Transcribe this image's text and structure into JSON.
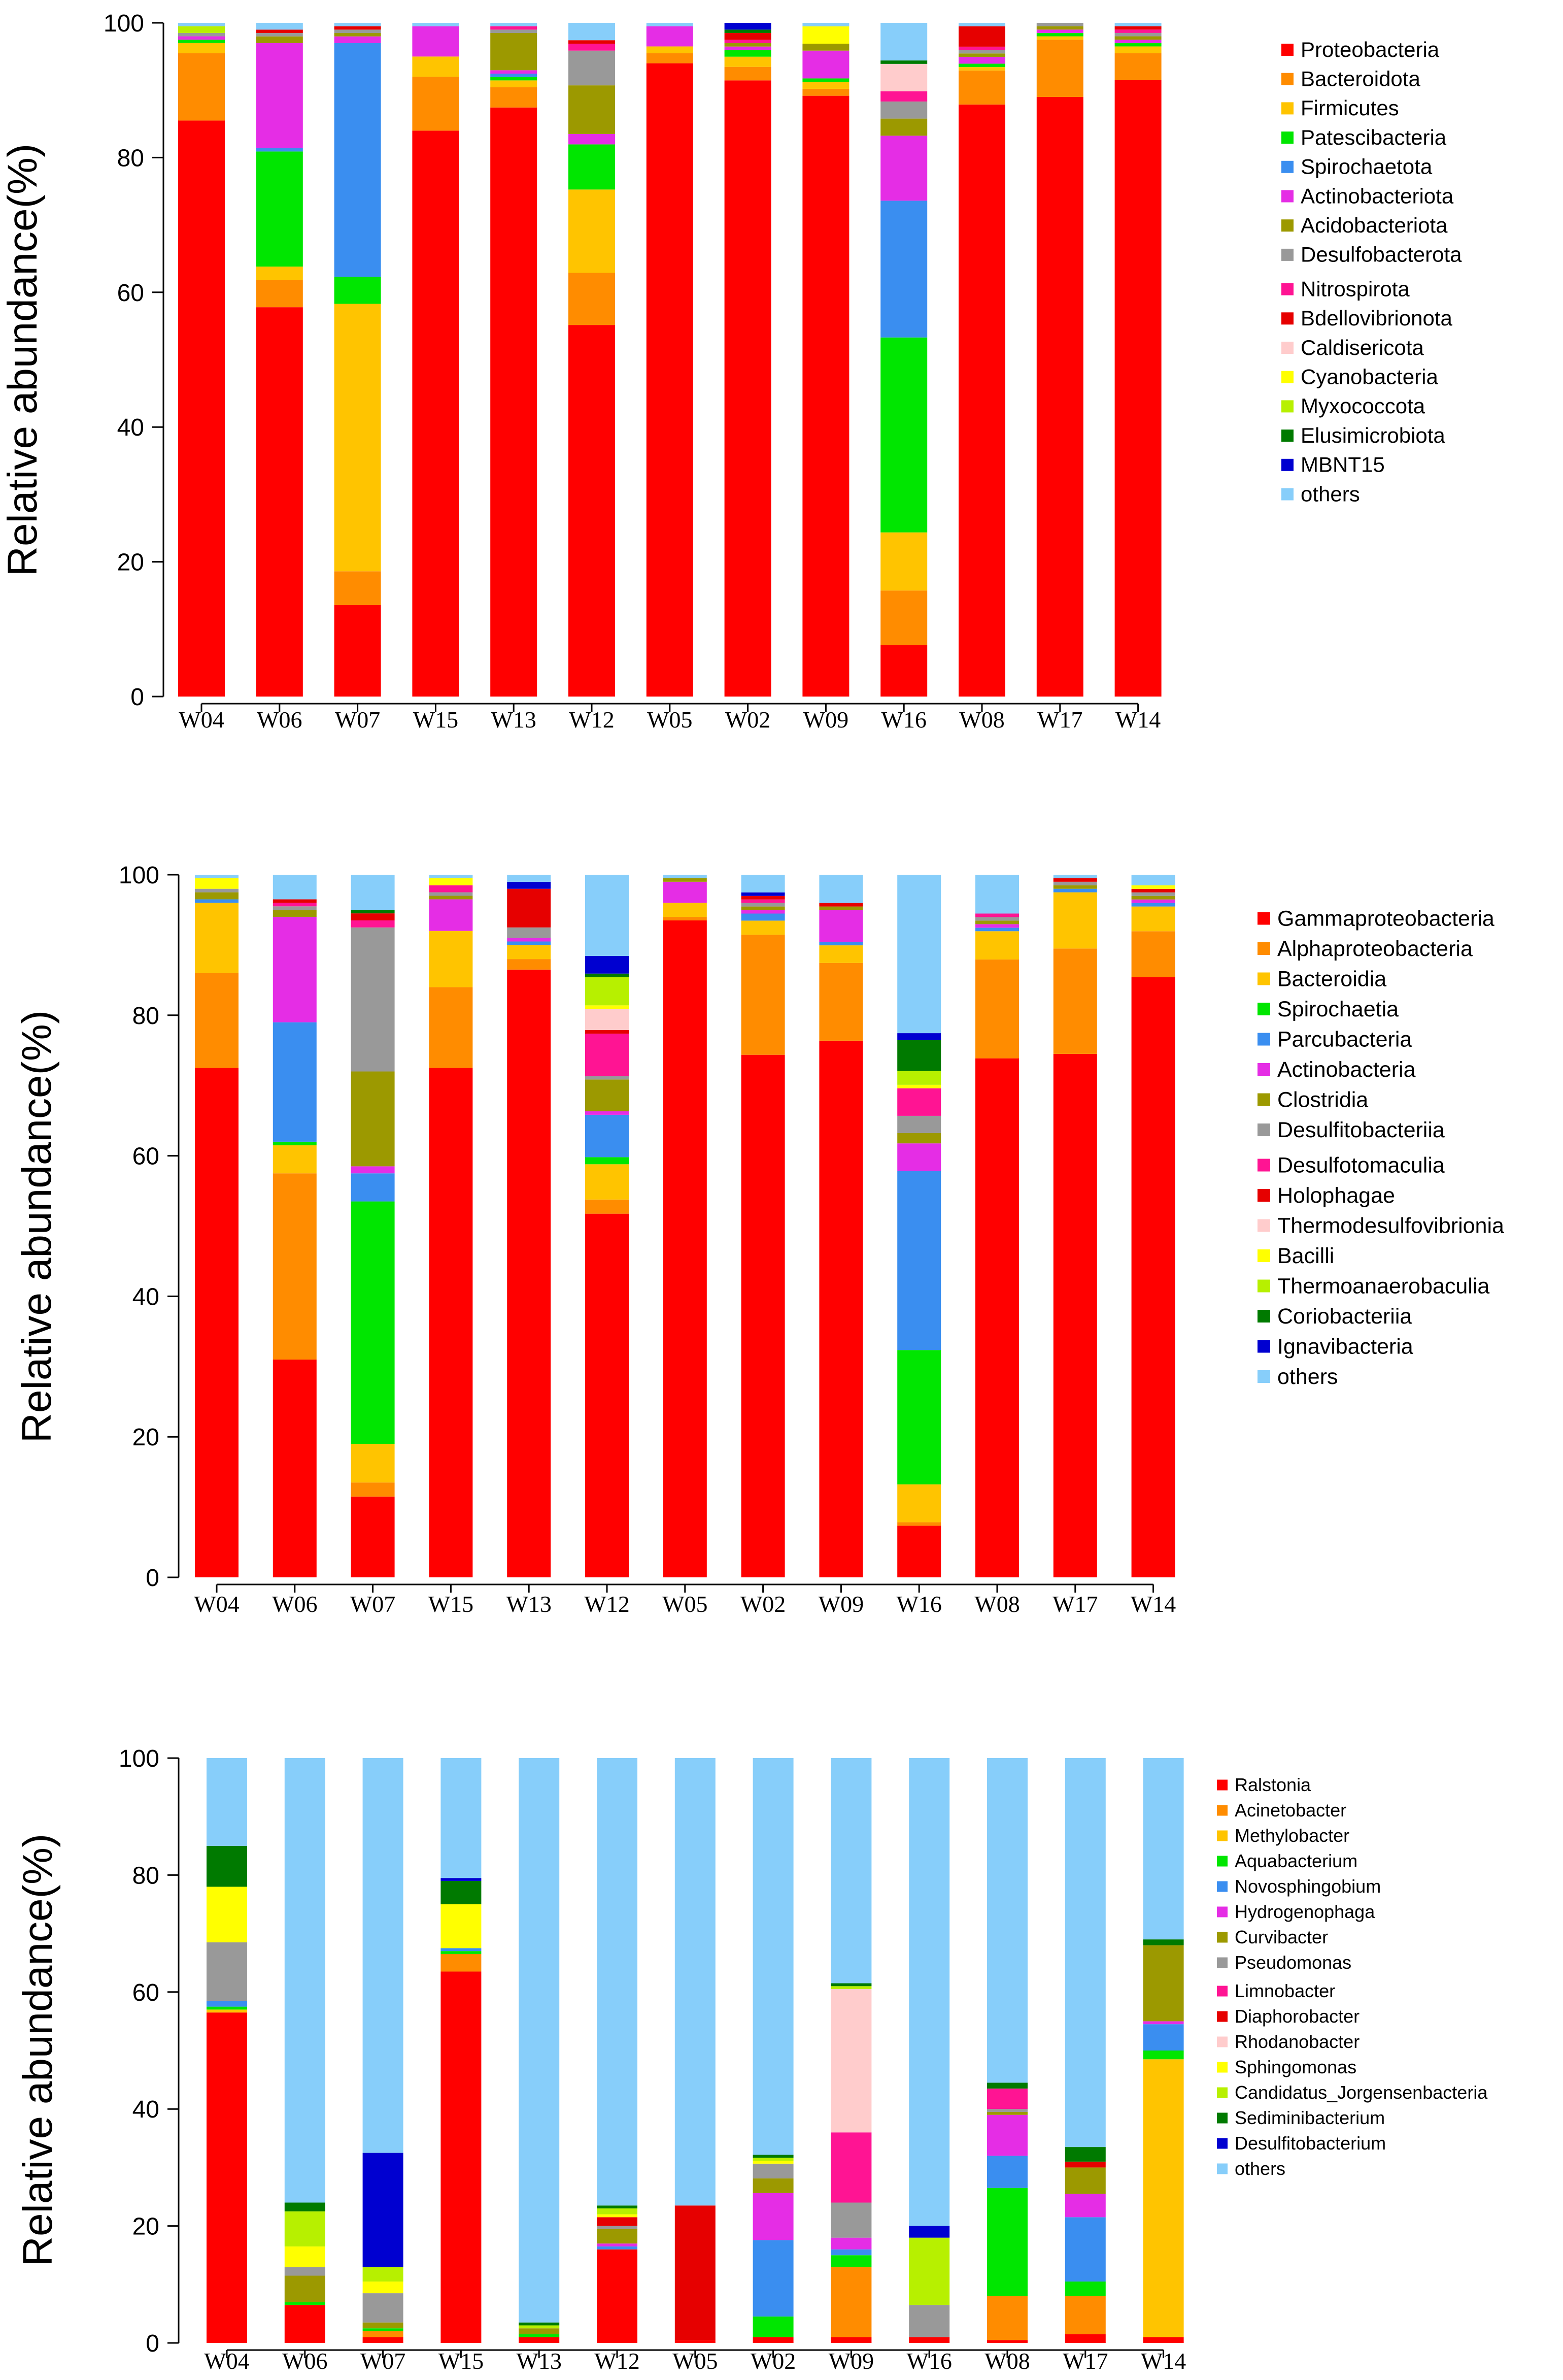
{
  "chart_data": [
    {
      "type": "bar",
      "stacked": true,
      "title": "",
      "xlabel": "",
      "ylabel": "Relative abundance(%)",
      "ylim": [
        0,
        100
      ],
      "yticks": [
        "0",
        "20",
        "40",
        "60",
        "80",
        "100"
      ],
      "categories": [
        "W04",
        "W06",
        "W07",
        "W15",
        "W13",
        "W12",
        "W05",
        "W02",
        "W09",
        "W16",
        "W08",
        "W17",
        "W14"
      ],
      "series": [
        {
          "name": "Proteobacteria",
          "color": "#ff0000",
          "values": [
            85.5,
            57.5,
            13.5,
            84,
            87,
            53.5,
            94,
            91,
            86.5,
            7.5,
            87,
            89,
            91.5
          ]
        },
        {
          "name": "Bacteroidota",
          "color": "#ff8c00",
          "values": [
            10,
            4,
            5,
            8,
            3,
            7.5,
            1.5,
            2,
            1,
            8,
            5,
            8.5,
            4
          ]
        },
        {
          "name": "Firmicutes",
          "color": "#ffc400",
          "values": [
            1.5,
            2,
            39.5,
            3,
            1,
            12,
            1,
            1.5,
            1,
            8.5,
            0.5,
            0.5,
            1
          ]
        },
        {
          "name": "Patescibacteria",
          "color": "#00e600",
          "values": [
            0.5,
            17,
            4,
            0,
            0.5,
            6.5,
            0,
            1,
            0.5,
            28.5,
            0.5,
            0.5,
            0.5
          ]
        },
        {
          "name": "Spirochaetota",
          "color": "#3a8ef0",
          "values": [
            0,
            0.5,
            34.5,
            0,
            0.5,
            0,
            0,
            0,
            0,
            20,
            0,
            0,
            0
          ]
        },
        {
          "name": "Actinobacteriota",
          "color": "#e52de5",
          "values": [
            0.5,
            15.5,
            1,
            4.5,
            0.5,
            1.5,
            3,
            0.5,
            4,
            9.5,
            1,
            0.5,
            0.5
          ]
        },
        {
          "name": "Acidobacteriota",
          "color": "#9c9900",
          "values": [
            0,
            1,
            0.5,
            0,
            5.5,
            7,
            0,
            0.5,
            1,
            2.5,
            0.5,
            0.5,
            0.5
          ]
        },
        {
          "name": "Desulfobacterota",
          "color": "#999999",
          "values": [
            0.5,
            0.5,
            0.5,
            0,
            0.5,
            5,
            0,
            0,
            0,
            2.5,
            0.5,
            0.5,
            0.5
          ]
        },
        {
          "name": "Nitrospirota",
          "color": "#ff1493",
          "values": [
            0,
            0,
            0,
            0,
            0.5,
            1,
            0,
            0.5,
            0,
            1.5,
            0.5,
            0,
            0.5
          ]
        },
        {
          "name": "Bdellovibrionota",
          "color": "#e60000",
          "values": [
            0,
            0.5,
            0.5,
            0,
            0,
            0.5,
            0,
            1,
            0,
            0,
            3,
            0,
            0.5
          ]
        },
        {
          "name": "Caldisericota",
          "color": "#ffcccc",
          "values": [
            0,
            0,
            0,
            0,
            0,
            0,
            0,
            0,
            0,
            4,
            0,
            0,
            0
          ]
        },
        {
          "name": "Cyanobacteria",
          "color": "#ffff00",
          "values": [
            0,
            0,
            0,
            0,
            0,
            0,
            0,
            0,
            2.5,
            0,
            0,
            0,
            0
          ]
        },
        {
          "name": "Myxococcota",
          "color": "#b7f000",
          "values": [
            1,
            0,
            0,
            0,
            0,
            0,
            0,
            0,
            0,
            0,
            0,
            0,
            0
          ]
        },
        {
          "name": "Elusimicrobiota",
          "color": "#007a00",
          "values": [
            0,
            0,
            0,
            0,
            0,
            0,
            0,
            0.5,
            0,
            0.5,
            0,
            0,
            0
          ]
        },
        {
          "name": "MBNT15",
          "color": "#0000d0",
          "values": [
            0,
            0,
            0,
            0,
            0,
            0,
            0,
            1,
            0,
            0,
            0,
            0,
            0
          ]
        },
        {
          "name": "others",
          "color": "#87cefa",
          "values": [
            0.5,
            1,
            0.5,
            0.5,
            0.5,
            2.5,
            0.5,
            0,
            0.5,
            5.5,
            0.5,
            0,
            0.5
          ]
        }
      ]
    },
    {
      "type": "bar",
      "stacked": true,
      "title": "",
      "xlabel": "",
      "ylabel": "Relative abundance(%)",
      "ylim": [
        0,
        100
      ],
      "yticks": [
        "0",
        "20",
        "40",
        "60",
        "80",
        "100"
      ],
      "categories": [
        "W04",
        "W06",
        "W07",
        "W15",
        "W13",
        "W12",
        "W05",
        "W02",
        "W09",
        "W16",
        "W08",
        "W17",
        "W14"
      ],
      "series": [
        {
          "name": "Gammaproteobacteria",
          "color": "#ff0000",
          "values": [
            72.5,
            31,
            11.5,
            72.5,
            86.5,
            51.5,
            93.5,
            74,
            76,
            7.5,
            73.5,
            74.5,
            85
          ]
        },
        {
          "name": "Alphaproteobacteria",
          "color": "#ff8c00",
          "values": [
            13.5,
            26.5,
            2,
            11.5,
            1.5,
            2,
            0.5,
            17,
            11,
            0.5,
            14,
            15,
            6.5
          ]
        },
        {
          "name": "Bacteroidia",
          "color": "#ffc400",
          "values": [
            10,
            4,
            5.5,
            8,
            2,
            5,
            2,
            2,
            2.5,
            5.5,
            4,
            8,
            3.5
          ]
        },
        {
          "name": "Spirochaetia",
          "color": "#00e600",
          "values": [
            0,
            0.5,
            34.5,
            0,
            0,
            1,
            0,
            0,
            0,
            19.5,
            0,
            0,
            0
          ]
        },
        {
          "name": "Parcubacteria",
          "color": "#3a8ef0",
          "values": [
            0.5,
            17,
            4,
            0,
            0.5,
            6,
            0,
            1,
            0.5,
            26,
            0.5,
            0.5,
            0.5
          ]
        },
        {
          "name": "Actinobacteria",
          "color": "#e52de5",
          "values": [
            0,
            15,
            1,
            4.5,
            0.5,
            0.5,
            3,
            0.5,
            4.5,
            4,
            0.5,
            0,
            0.5
          ]
        },
        {
          "name": "Clostridia",
          "color": "#9c9900",
          "values": [
            1,
            1,
            13.5,
            0.5,
            0,
            4.5,
            0.5,
            0.5,
            0.5,
            1.5,
            0.5,
            0.5,
            0.5
          ]
        },
        {
          "name": "Desulfitobacteriia",
          "color": "#999999",
          "values": [
            0.5,
            0.5,
            20.5,
            0.5,
            1.5,
            0.5,
            0,
            0.5,
            0,
            2.5,
            0.5,
            0.5,
            0.5
          ]
        },
        {
          "name": "Desulfotomaculia",
          "color": "#ff1493",
          "values": [
            0,
            0.5,
            1,
            1,
            0,
            6,
            0,
            0.5,
            0,
            4,
            0.5,
            0,
            0
          ]
        },
        {
          "name": "Holophagae",
          "color": "#e60000",
          "values": [
            0,
            0.5,
            1,
            0,
            5.5,
            0.5,
            0,
            0.5,
            0.5,
            0,
            0,
            0.5,
            0.5
          ]
        },
        {
          "name": "Thermodesulfovibrionia",
          "color": "#ffcccc",
          "values": [
            0,
            0,
            0,
            0,
            0,
            3,
            0,
            0,
            0,
            0,
            0,
            0,
            0
          ]
        },
        {
          "name": "Bacilli",
          "color": "#ffff00",
          "values": [
            1.5,
            0,
            0,
            1,
            0,
            0.5,
            0,
            0,
            0,
            0.5,
            0,
            0,
            0.5
          ]
        },
        {
          "name": "Thermoanaerobaculia",
          "color": "#b7f000",
          "values": [
            0,
            0,
            0,
            0,
            0,
            4,
            0,
            0,
            0,
            2,
            0,
            0,
            0
          ]
        },
        {
          "name": "Coriobacteriia",
          "color": "#007a00",
          "values": [
            0,
            0,
            0.5,
            0,
            0,
            0.5,
            0,
            0,
            0,
            4.5,
            0,
            0,
            0
          ]
        },
        {
          "name": "Ignavibacteria",
          "color": "#0000d0",
          "values": [
            0,
            0,
            0,
            0,
            1,
            2.5,
            0,
            0.5,
            0,
            1,
            0,
            0,
            0
          ]
        },
        {
          "name": "others",
          "color": "#87cefa",
          "values": [
            0.5,
            3.5,
            5,
            0.5,
            1,
            11.5,
            0.5,
            2.5,
            4,
            23,
            5.5,
            0.5,
            1.5
          ]
        }
      ]
    },
    {
      "type": "bar",
      "stacked": true,
      "title": "",
      "xlabel": "",
      "ylabel": "Relative abundance(%)",
      "ylim": [
        0,
        100
      ],
      "yticks": [
        "0",
        "20",
        "40",
        "60",
        "80",
        "100"
      ],
      "categories": [
        "W04",
        "W06",
        "W07",
        "W15",
        "W13",
        "W12",
        "W05",
        "W02",
        "W09",
        "W16",
        "W08",
        "W17",
        "W14"
      ],
      "series": [
        {
          "name": "Ralstonia",
          "color": "#ff0000",
          "values": [
            56.5,
            6.5,
            1,
            63.5,
            1,
            16,
            0.5,
            1,
            1,
            1,
            0.5,
            1.5,
            1
          ]
        },
        {
          "name": "Acinetobacter",
          "color": "#ff8c00",
          "values": [
            0,
            0,
            1,
            3,
            0,
            0,
            0,
            0,
            12,
            0,
            7.5,
            6.5,
            0
          ]
        },
        {
          "name": "Methylobacter",
          "color": "#ffc400",
          "values": [
            0.5,
            0,
            0,
            0,
            0,
            0,
            0,
            0,
            0,
            0,
            0,
            0,
            47.5
          ]
        },
        {
          "name": "Aquabacterium",
          "color": "#00e600",
          "values": [
            0.5,
            0.5,
            0.5,
            0.5,
            0.5,
            0,
            0,
            3.5,
            2,
            0,
            18.5,
            2.5,
            1.5
          ]
        },
        {
          "name": "Novosphingobium",
          "color": "#3a8ef0",
          "values": [
            1,
            0,
            0,
            0.5,
            0,
            0.5,
            0,
            13,
            1,
            0,
            5.5,
            11,
            4.5
          ]
        },
        {
          "name": "Hydrogenophaga",
          "color": "#e52de5",
          "values": [
            0,
            0,
            0,
            0,
            0,
            0.5,
            0,
            8,
            2,
            0,
            7,
            4,
            0.5
          ]
        },
        {
          "name": "Curvibacter",
          "color": "#9c9900",
          "values": [
            0,
            4.5,
            1,
            0,
            1,
            2.5,
            0,
            2.5,
            0,
            0,
            0.5,
            4.5,
            13
          ]
        },
        {
          "name": "Pseudomonas",
          "color": "#999999",
          "values": [
            10,
            1.5,
            5,
            0,
            0,
            0.5,
            0,
            2.5,
            6,
            5.5,
            0.5,
            0,
            0
          ]
        },
        {
          "name": "Limnobacter",
          "color": "#ff1493",
          "values": [
            0,
            0,
            0,
            0,
            0,
            0,
            0,
            0,
            12,
            0,
            3.5,
            0,
            0
          ]
        },
        {
          "name": "Diaphorobacter",
          "color": "#e60000",
          "values": [
            0,
            0,
            0,
            0,
            0,
            1.5,
            23,
            0,
            0,
            0,
            0,
            1,
            0
          ]
        },
        {
          "name": "Rhodanobacter",
          "color": "#ffcccc",
          "values": [
            0,
            0,
            0,
            0,
            0,
            0,
            0,
            0,
            24.5,
            0,
            0,
            0,
            0
          ]
        },
        {
          "name": "Sphingomonas",
          "color": "#ffff00",
          "values": [
            9.5,
            3.5,
            2,
            7.5,
            0,
            0.5,
            0,
            0.5,
            0,
            0,
            0,
            0,
            0
          ]
        },
        {
          "name": "Candidatus_Jorgensenbacteria",
          "color": "#b7f000",
          "values": [
            0,
            6,
            2.5,
            0,
            0.5,
            1,
            0,
            0.5,
            0.5,
            11.5,
            0,
            0,
            0
          ]
        },
        {
          "name": "Sediminibacterium",
          "color": "#007a00",
          "values": [
            7,
            1.5,
            0,
            4,
            0.5,
            0.5,
            0,
            0.5,
            0.5,
            0,
            1,
            2.5,
            1
          ]
        },
        {
          "name": "Desulfitobacterium",
          "color": "#0000d0",
          "values": [
            0,
            0,
            19.5,
            0.5,
            0,
            0,
            0,
            0,
            0,
            2,
            0,
            0,
            0
          ]
        },
        {
          "name": "others",
          "color": "#87cefa",
          "values": [
            15,
            76,
            67.5,
            20.5,
            96.5,
            76.5,
            76.5,
            67.5,
            38.5,
            80,
            55.5,
            66.5,
            31
          ]
        }
      ]
    }
  ]
}
